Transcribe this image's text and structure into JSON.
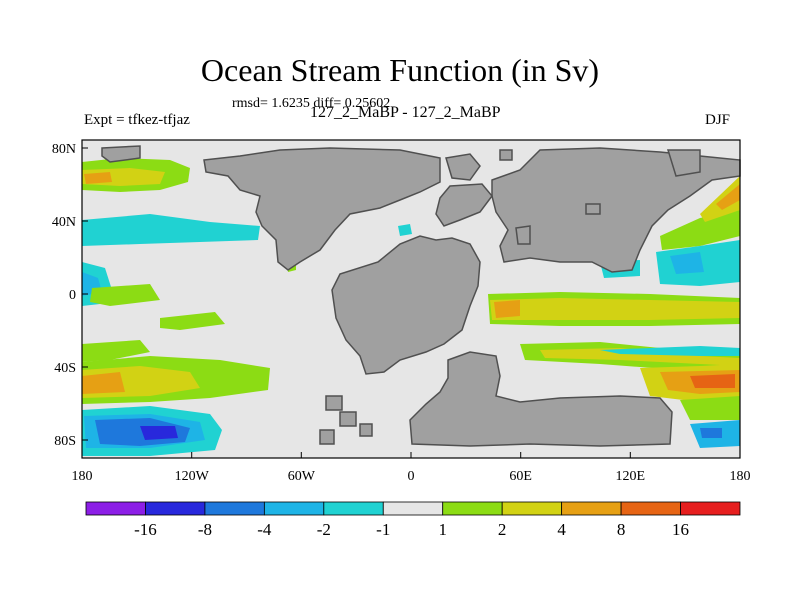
{
  "header": {
    "title": "Ocean Stream Function (in Sv)",
    "stats": "rmsd= 1.6235 diff= 0.25602",
    "experiment": "Expt = tfkez-tfjaz",
    "subtitle": "127_2_MaBP - 127_2_MaBP",
    "season": "DJF"
  },
  "map": {
    "lon_ticks": [
      "180",
      "120W",
      "60W",
      "0",
      "60E",
      "120E",
      "180"
    ],
    "lat_ticks": [
      "80N",
      "40N",
      "0",
      "40S",
      "80S"
    ],
    "land_color": "#a0a0a0",
    "ocean_color": "#e6e6e6"
  },
  "colorbar": {
    "labels": [
      "-16",
      "-8",
      "-4",
      "-2",
      "-1",
      "1",
      "2",
      "4",
      "8",
      "16"
    ],
    "colors": [
      "#8c1ee6",
      "#2828dc",
      "#1e78dc",
      "#1eb4e6",
      "#20d2d2",
      "#e6e6e6",
      "#8cdc14",
      "#d2d214",
      "#e6a014",
      "#e66414",
      "#e61e1e"
    ]
  }
}
